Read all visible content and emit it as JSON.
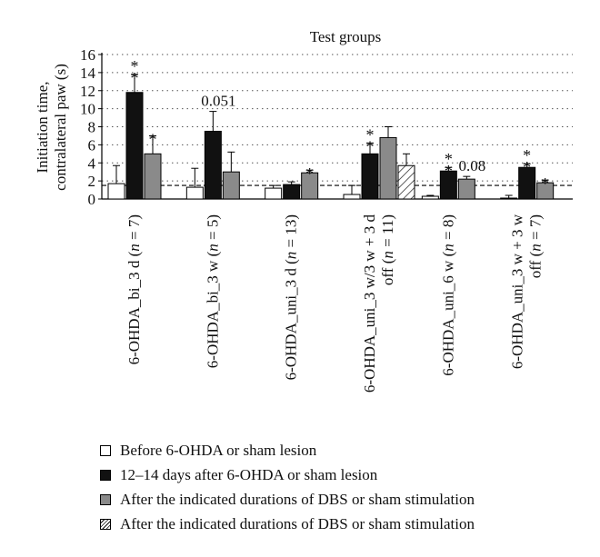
{
  "chart_data": {
    "type": "bar",
    "title": "Test groups",
    "ylabel": "Initiation time,\ncontralateral paw (s)",
    "xlabel": "",
    "ylim": [
      0,
      16
    ],
    "yticks": [
      0,
      2,
      4,
      6,
      8,
      10,
      12,
      14,
      16
    ],
    "grid": "horizontal dotted",
    "reference_line": 1.5,
    "groups": [
      {
        "label": "6-OHDA_bi_3 d (n = 7)",
        "label_lines": [
          [
            [
              "6-OHDA_bi_3 d (",
              false
            ],
            [
              "n",
              true
            ],
            [
              " = 7)",
              false
            ]
          ]
        ],
        "bars": [
          {
            "series": 0,
            "value": 1.7,
            "error": 2.0,
            "annotation": ""
          },
          {
            "series": 1,
            "value": 11.8,
            "error": 2.0,
            "annotation": "**"
          },
          {
            "series": 2,
            "value": 5.0,
            "error": 2.0,
            "annotation": "*"
          }
        ]
      },
      {
        "label": "6-OHDA_bi_3 w (n = 5)",
        "label_lines": [
          [
            [
              "6-OHDA_bi_3 w (",
              false
            ],
            [
              "n",
              true
            ],
            [
              " = 5)",
              false
            ]
          ]
        ],
        "bars": [
          {
            "series": 0,
            "value": 1.3,
            "error": 2.1,
            "annotation": ""
          },
          {
            "series": 1,
            "value": 7.5,
            "error": 2.2,
            "annotation": "0.051"
          },
          {
            "series": 2,
            "value": 3.0,
            "error": 2.2,
            "annotation": ""
          }
        ]
      },
      {
        "label": "6-OHDA_uni_3 d (n = 13)",
        "label_lines": [
          [
            [
              "6-OHDA_uni_3 d (",
              false
            ],
            [
              "n",
              true
            ],
            [
              " = 13)",
              false
            ]
          ]
        ],
        "bars": [
          {
            "series": 0,
            "value": 1.2,
            "error": 0.3,
            "annotation": ""
          },
          {
            "series": 1,
            "value": 1.6,
            "error": 0.3,
            "annotation": ""
          },
          {
            "series": 2,
            "value": 2.9,
            "error": 0.3,
            "annotation": "*"
          }
        ]
      },
      {
        "label": "6-OHDA_uni_3 w/3 w + 3 d off (n = 11)",
        "label_lines": [
          [
            [
              "6-OHDA_uni_3 w/3 w + 3 d",
              false
            ]
          ],
          [
            [
              "off (",
              false
            ],
            [
              "n",
              true
            ],
            [
              " = 11)",
              false
            ]
          ]
        ],
        "bars": [
          {
            "series": 0,
            "value": 0.5,
            "error": 1.0,
            "annotation": ""
          },
          {
            "series": 1,
            "value": 5.0,
            "error": 1.2,
            "annotation": "**"
          },
          {
            "series": 2,
            "value": 6.8,
            "error": 1.2,
            "annotation": ""
          },
          {
            "series": 3,
            "value": 3.7,
            "error": 1.3,
            "annotation": ""
          }
        ]
      },
      {
        "label": "6-OHDA_uni_6 w (n = 8)",
        "label_lines": [
          [
            [
              "6-OHDA_uni_6 w (",
              false
            ],
            [
              "n",
              true
            ],
            [
              " = 8)",
              false
            ]
          ]
        ],
        "bars": [
          {
            "series": 0,
            "value": 0.3,
            "error": 0.1,
            "annotation": ""
          },
          {
            "series": 1,
            "value": 3.1,
            "error": 0.4,
            "annotation": "**"
          },
          {
            "series": 2,
            "value": 2.2,
            "error": 0.3,
            "annotation": "0.08"
          }
        ]
      },
      {
        "label": "6-OHDA_uni_3 w + 3 w off (n = 7)",
        "label_lines": [
          [
            [
              "6-OHDA_uni_3 w + 3 w",
              false
            ]
          ],
          [
            [
              "off (",
              false
            ],
            [
              "n",
              true
            ],
            [
              " = 7)",
              false
            ]
          ]
        ],
        "bars": [
          {
            "series": 0,
            "value": 0.1,
            "error": 0.3,
            "annotation": ""
          },
          {
            "series": 1,
            "value": 3.5,
            "error": 0.4,
            "annotation": "**"
          },
          {
            "series": 2,
            "value": 1.8,
            "error": 0.3,
            "annotation": "*"
          }
        ]
      }
    ],
    "series": [
      {
        "name": "Before 6-OHDA or sham lesion",
        "fill": "#ffffff"
      },
      {
        "name": "12–14 days after 6-OHDA or sham lesion",
        "fill": "#111111"
      },
      {
        "name": "After the indicated durations of DBS or sham stimulation",
        "fill": "#8a8a8a"
      },
      {
        "name": "After the indicated durations of DBS or sham stimulation",
        "fill": "hatch"
      }
    ],
    "legend_position": "bottom"
  }
}
